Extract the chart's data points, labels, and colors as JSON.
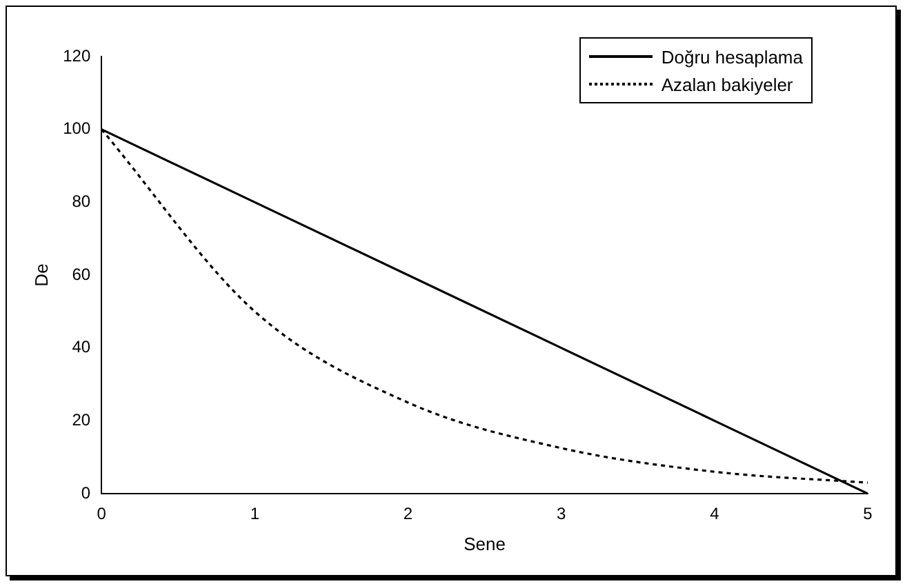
{
  "chart_data": {
    "type": "line",
    "xlabel": "Sene",
    "ylabel": "De",
    "x": [
      0,
      1,
      2,
      3,
      4,
      5
    ],
    "series": [
      {
        "name": "Doğru hesaplama",
        "color": "#000000",
        "line_style": "solid",
        "values": [
          100,
          80,
          60,
          40,
          20,
          0
        ]
      },
      {
        "name": "Azalan bakiyeler",
        "color": "#000000",
        "line_style": "dotted",
        "values": [
          100,
          50,
          25,
          12.5,
          6,
          3
        ]
      }
    ],
    "xlim": [
      0,
      5
    ],
    "xticks": [
      0,
      1,
      2,
      3,
      4,
      5
    ],
    "ylim": [
      0,
      120
    ],
    "yticks": [
      0,
      20,
      40,
      60,
      80,
      100,
      120
    ],
    "grid": false,
    "legend": "top right",
    "marker": "none"
  }
}
